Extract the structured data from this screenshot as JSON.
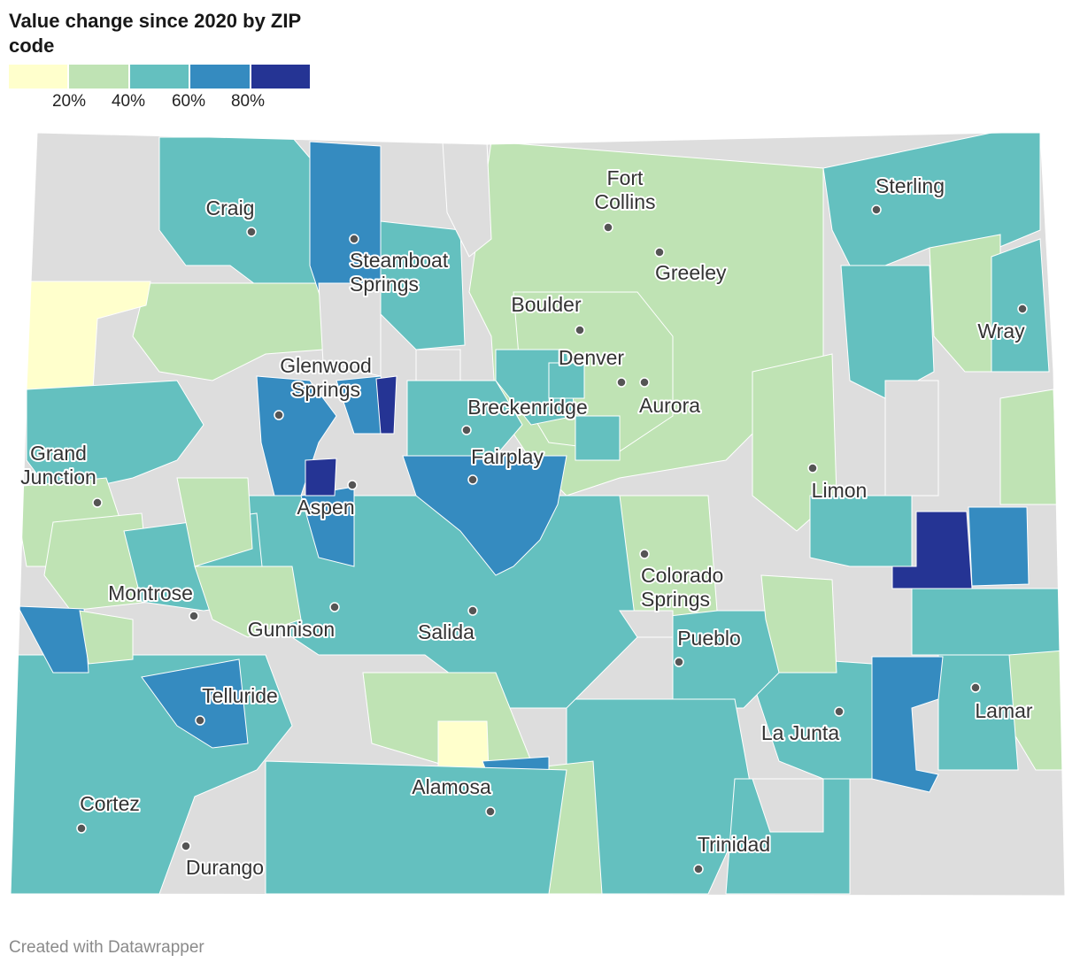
{
  "title": "Value change since 2020 by ZIP code",
  "legend": {
    "colors": [
      "#ffffcc",
      "#bfe3b4",
      "#64c0bf",
      "#358bc0",
      "#253494"
    ],
    "ticks": [
      "20%",
      "40%",
      "60%",
      "80%"
    ]
  },
  "map": {
    "no_data_color": "#dddddd",
    "cities": [
      {
        "id": "craig",
        "name": "Craig"
      },
      {
        "id": "steamboat-springs",
        "name": "Steamboat Springs"
      },
      {
        "id": "fort-collins",
        "name": "Fort Collins"
      },
      {
        "id": "greeley",
        "name": "Greeley"
      },
      {
        "id": "sterling",
        "name": "Sterling"
      },
      {
        "id": "boulder",
        "name": "Boulder"
      },
      {
        "id": "wray",
        "name": "Wray"
      },
      {
        "id": "denver",
        "name": "Denver"
      },
      {
        "id": "aurora",
        "name": "Aurora"
      },
      {
        "id": "glenwood-springs",
        "name": "Glenwood Springs"
      },
      {
        "id": "breckenridge",
        "name": "Breckenridge"
      },
      {
        "id": "grand-junction",
        "name": "Grand Junction"
      },
      {
        "id": "fairplay",
        "name": "Fairplay"
      },
      {
        "id": "limon",
        "name": "Limon"
      },
      {
        "id": "aspen",
        "name": "Aspen"
      },
      {
        "id": "colorado-springs",
        "name": "Colorado Springs"
      },
      {
        "id": "montrose",
        "name": "Montrose"
      },
      {
        "id": "gunnison",
        "name": "Gunnison"
      },
      {
        "id": "salida",
        "name": "Salida"
      },
      {
        "id": "pueblo",
        "name": "Pueblo"
      },
      {
        "id": "telluride",
        "name": "Telluride"
      },
      {
        "id": "lamar",
        "name": "Lamar"
      },
      {
        "id": "la-junta",
        "name": "La Junta"
      },
      {
        "id": "alamosa",
        "name": "Alamosa"
      },
      {
        "id": "cortez",
        "name": "Cortez"
      },
      {
        "id": "trinidad",
        "name": "Trinidad"
      },
      {
        "id": "durango",
        "name": "Durango"
      }
    ]
  },
  "footer": "Created with Datawrapper"
}
